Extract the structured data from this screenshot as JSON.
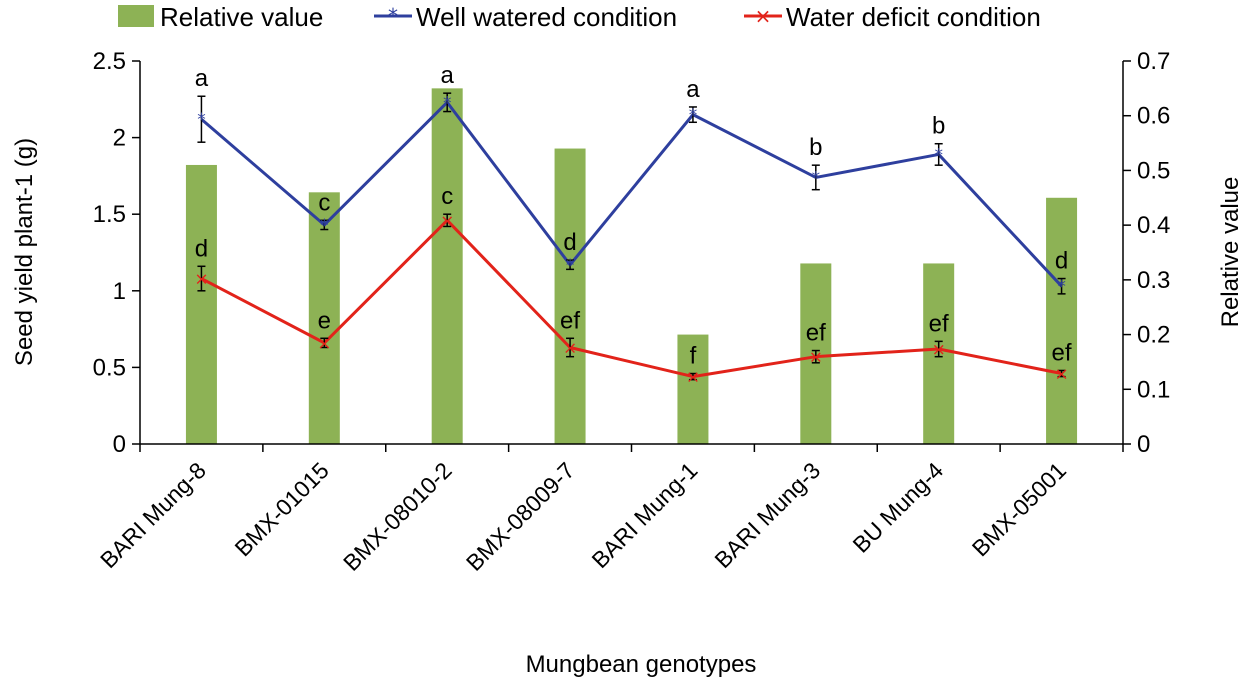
{
  "chart_data": {
    "type": "bar",
    "title": "",
    "xlabel": "Mungbean genotypes",
    "ylabel": "Seed yield plant-1 (g)",
    "y2label": "Relative value",
    "ylim": [
      0,
      2.5
    ],
    "y2lim": [
      0,
      0.7
    ],
    "yticks": [
      "0",
      "0.5",
      "1",
      "1.5",
      "2",
      "2.5"
    ],
    "y2ticks": [
      "0",
      "0.1",
      "0.2",
      "0.3",
      "0.4",
      "0.5",
      "0.6",
      "0.7"
    ],
    "legend_position": "top",
    "categories": [
      "BARI Mung-8",
      "BMX-01015",
      "BMX-08010-2",
      "BMX-08009-7",
      "BARI Mung-1",
      "BARI Mung-3",
      "BU Mung-4",
      "BMX-05001"
    ],
    "series": [
      {
        "name": "Relative value",
        "kind": "bar",
        "axis": "right",
        "color": "#8db255",
        "values": [
          0.51,
          0.46,
          0.65,
          0.54,
          0.2,
          0.33,
          0.33,
          0.45
        ]
      },
      {
        "name": "Well watered condition",
        "kind": "line",
        "axis": "left",
        "color": "#2e3f9e",
        "marker": "*",
        "values": [
          2.12,
          1.43,
          2.23,
          1.17,
          2.15,
          1.74,
          1.89,
          1.03
        ],
        "errors": [
          0.15,
          0.03,
          0.06,
          0.03,
          0.05,
          0.08,
          0.07,
          0.05
        ],
        "letters": [
          "a",
          "c",
          "a",
          "d",
          "a",
          "b",
          "b",
          "d"
        ]
      },
      {
        "name": "Water deficit condition",
        "kind": "line",
        "axis": "left",
        "color": "#e2231a",
        "marker": "×",
        "values": [
          1.08,
          0.66,
          1.46,
          0.63,
          0.44,
          0.57,
          0.62,
          0.46
        ],
        "errors": [
          0.08,
          0.03,
          0.04,
          0.06,
          0.02,
          0.04,
          0.05,
          0.02
        ],
        "letters": [
          "d",
          "e",
          "c",
          "ef",
          "f",
          "ef",
          "ef",
          "ef"
        ]
      }
    ]
  }
}
